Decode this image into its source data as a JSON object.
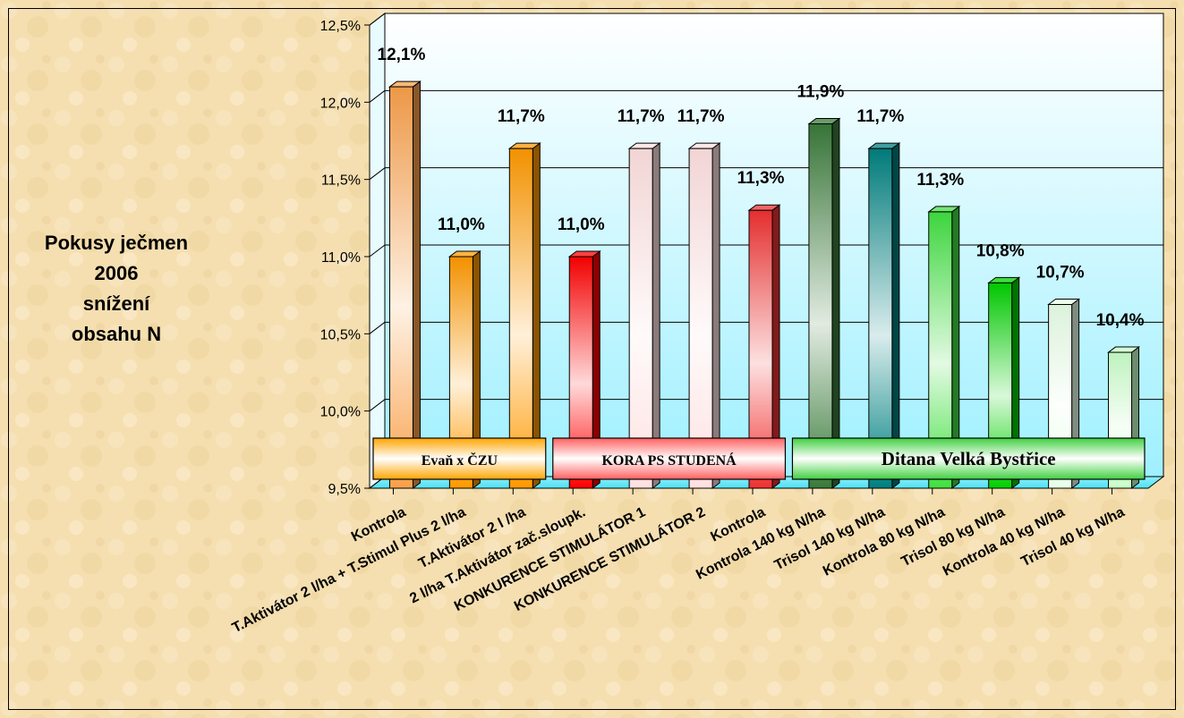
{
  "side_title": [
    "Pokusy ječmen",
    "2006",
    "snížení",
    "obsahu N"
  ],
  "chart_data": {
    "type": "bar",
    "title": "",
    "xlabel": "",
    "ylabel": "",
    "ylim": [
      9.5,
      12.5
    ],
    "yticks": [
      "9,5%",
      "10,0%",
      "10,5%",
      "11,0%",
      "11,5%",
      "12,0%",
      "12,5%"
    ],
    "grid": true,
    "three_d": true,
    "categories": [
      "Kontrola",
      "T.Aktivátor 2 l/ha + T.Stimul Plus 2 l/ha",
      "T.Aktivátor 2 l /ha",
      "2 l/ha T.Aktivátor zač.sloupk.",
      "KONKURENCE STIMULÁTOR 1",
      "KONKURENCE STIMULÁTOR 2",
      "Kontrola",
      "Kontrola 140 kg N/ha",
      "Trisol 140 kg N/ha",
      "Kontrola 80 kg N/ha",
      "Trisol 80 kg N/ha",
      "Kontrola 40 kg N/ha",
      "Trisol 40 kg N/ha"
    ],
    "values": [
      12.1,
      11.0,
      11.7,
      11.0,
      11.7,
      11.7,
      11.3,
      11.86,
      11.7,
      11.29,
      10.83,
      10.69,
      10.38
    ],
    "value_labels": [
      "12,1%",
      "11,0%",
      "11,7%",
      "11,0%",
      "11,7%",
      "11,7%",
      "11,3%",
      "11,9%",
      "11,7%",
      "11,3%",
      "10,8%",
      "10,7%",
      "10,4%"
    ],
    "bar_colors": [
      "#f9a04b",
      "#ff9900",
      "#ff9900",
      "#ff0000",
      "#ffe0e0",
      "#ffe0e0",
      "#f03030",
      "#3a7a3a",
      "#008080",
      "#40e040",
      "#00d000",
      "#e8ffe8",
      "#c8ffc8"
    ],
    "groups": [
      {
        "label": "Evaň x ČZU",
        "color": "#ffa500"
      },
      {
        "label": "KORA PS STUDENÁ",
        "color": "#ff6060"
      },
      {
        "label": "Ditana Velká Bystřice",
        "color": "#40d040"
      }
    ]
  }
}
